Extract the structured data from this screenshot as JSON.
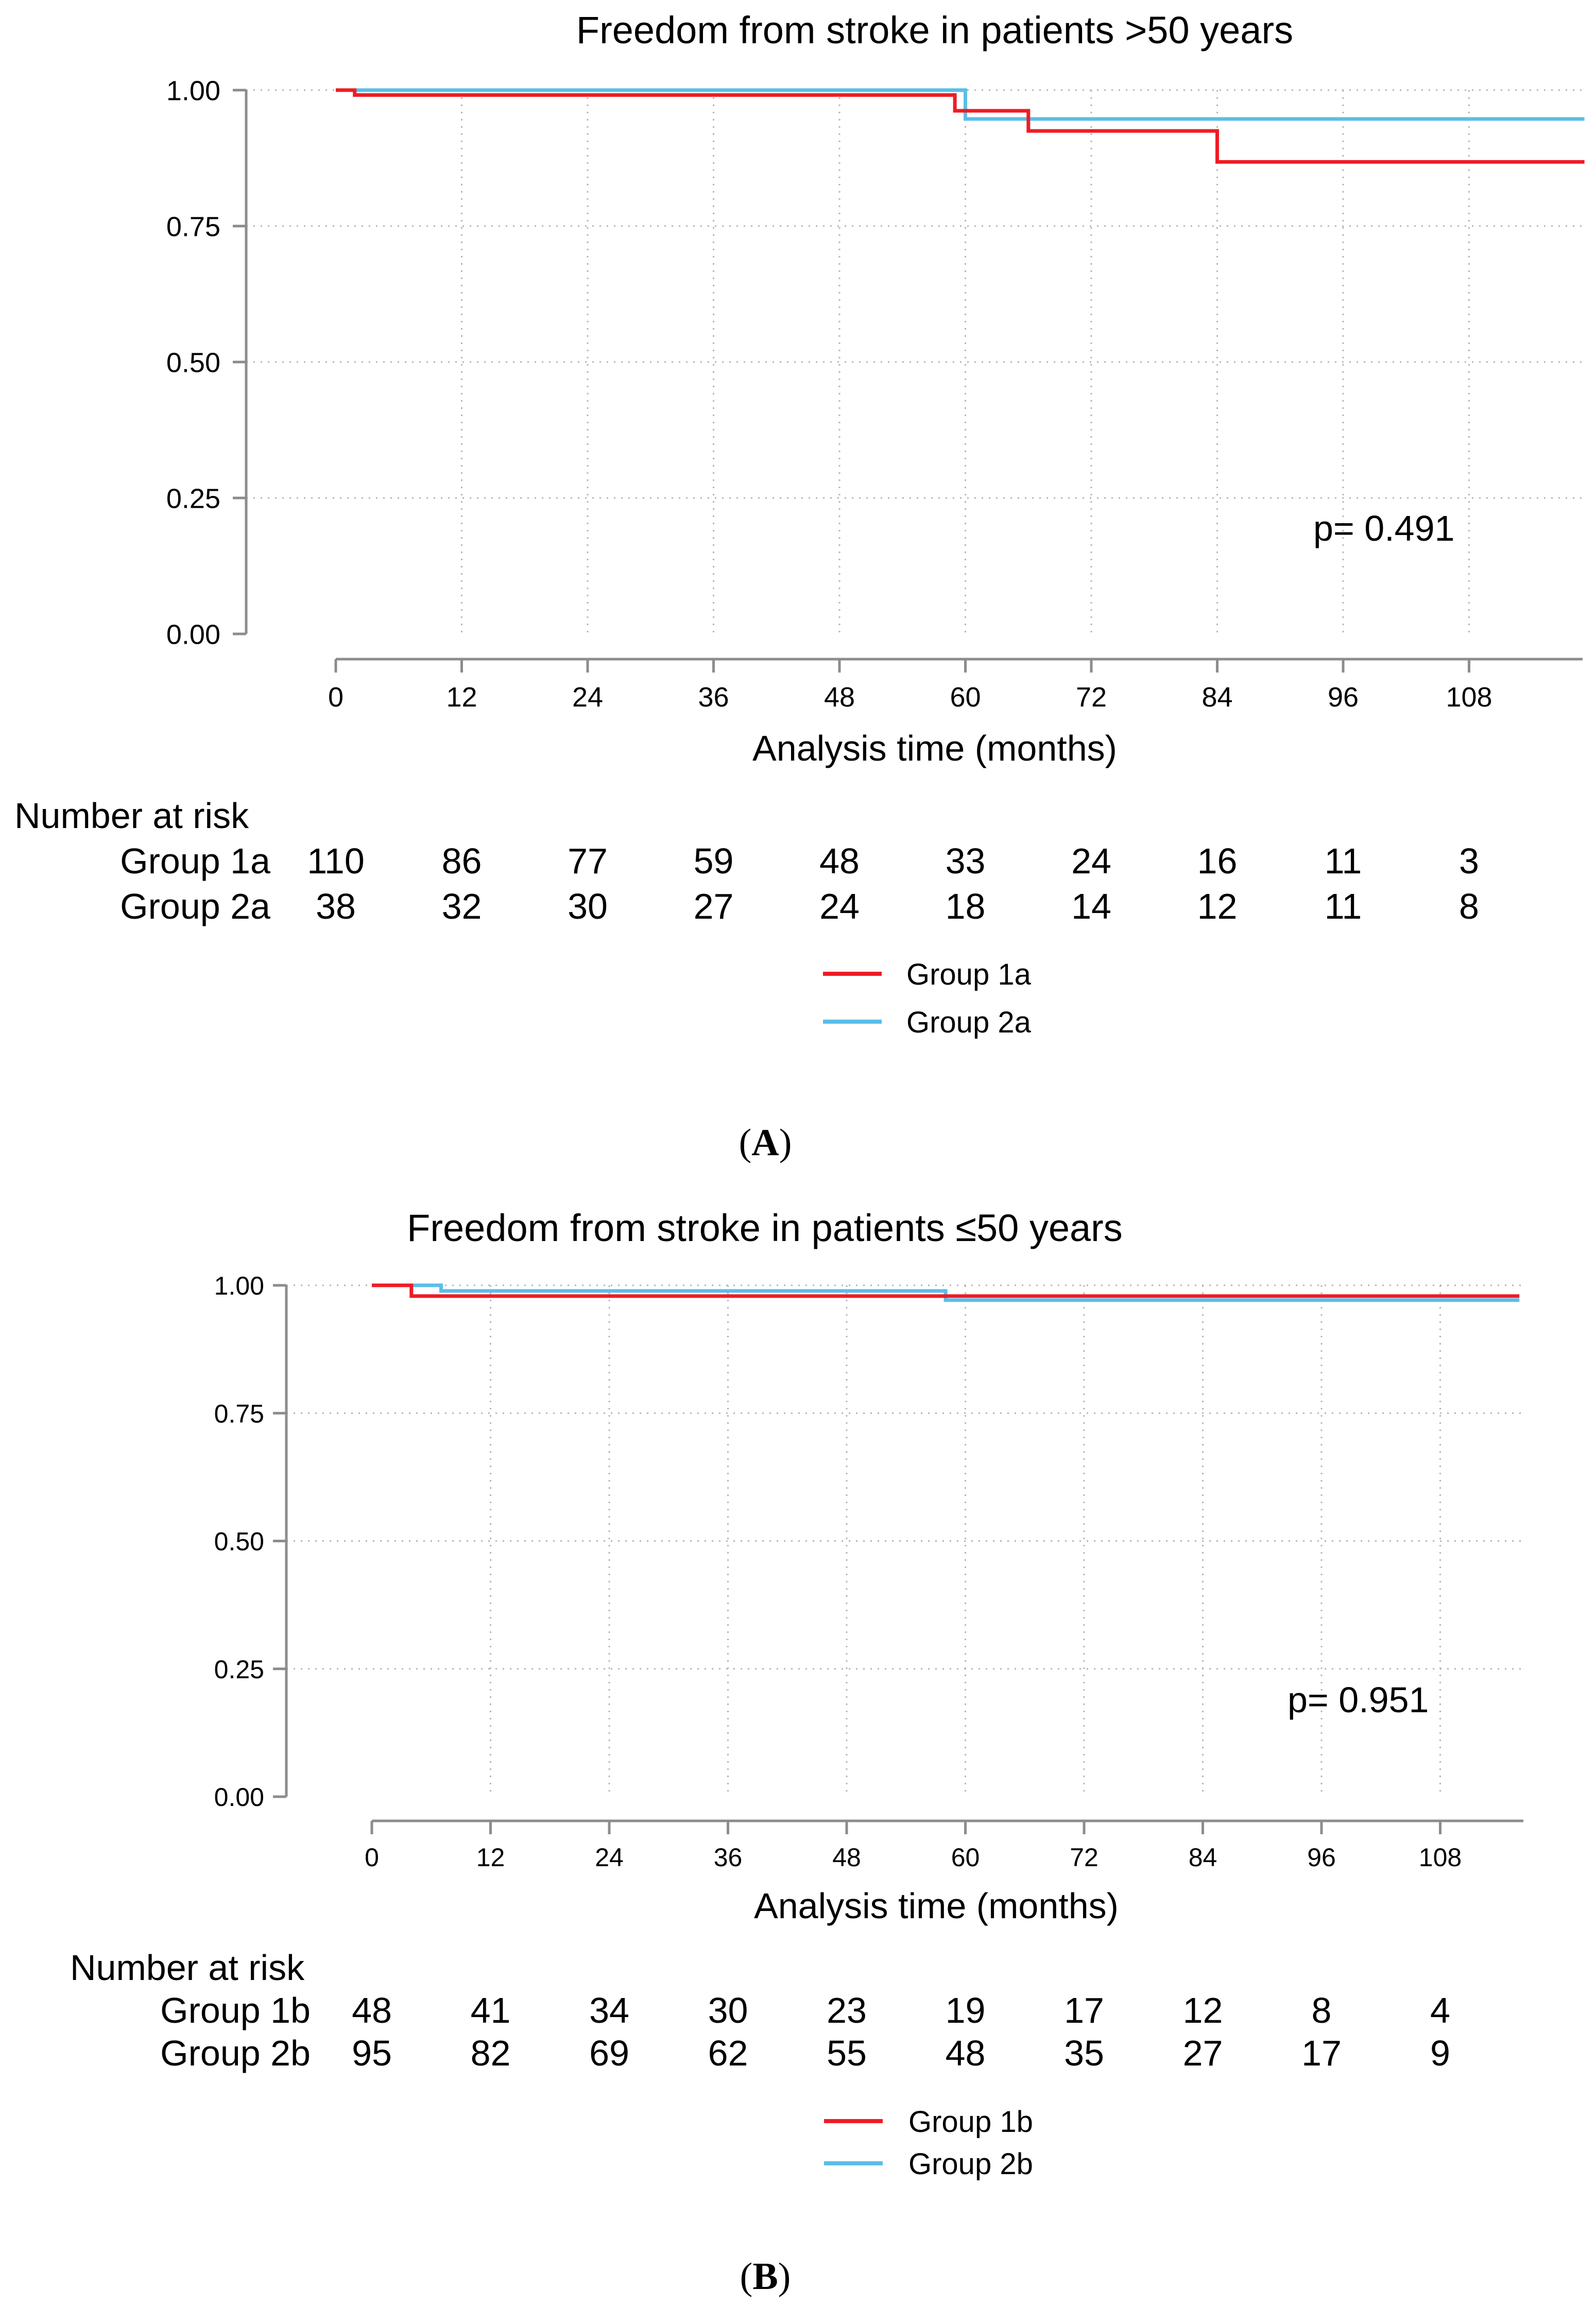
{
  "chart_data": [
    {
      "panel": "(A)",
      "panel_open": "(",
      "panel_letter": "A",
      "panel_close": ")",
      "type": "line",
      "subtype": "kaplan-meier",
      "title": "Freedom from stroke in patients >50 years",
      "xlabel": "Analysis time (months)",
      "ylabel": "",
      "xlim": [
        0,
        119
      ],
      "ylim": [
        0,
        1
      ],
      "x_ticks": [
        0,
        12,
        24,
        36,
        48,
        60,
        72,
        84,
        96,
        108
      ],
      "y_ticks": [
        "0.00",
        "0.25",
        "0.50",
        "0.75",
        "1.00"
      ],
      "grid": true,
      "annotation": "p= 0.491",
      "series": [
        {
          "name": "Group 1a",
          "color": "#ee1c25",
          "steps": [
            [
              0,
              1.0
            ],
            [
              1.8,
              0.991
            ],
            [
              59,
              0.962
            ],
            [
              66,
              0.925
            ],
            [
              84,
              0.868
            ],
            [
              119,
              0.868
            ]
          ]
        },
        {
          "name": "Group 2a",
          "color": "#5bbde8",
          "steps": [
            [
              0,
              1.0
            ],
            [
              60,
              0.947
            ],
            [
              119,
              0.947
            ]
          ]
        }
      ],
      "risk_table": {
        "heading": "Number at risk",
        "rows": [
          {
            "label": "Group 1a",
            "values": [
              "110",
              "86",
              "77",
              "59",
              "48",
              "33",
              "24",
              "16",
              "11",
              "3"
            ]
          },
          {
            "label": "Group 2a",
            "values": [
              "38",
              "32",
              "30",
              "27",
              "24",
              "18",
              "14",
              "12",
              "11",
              "8"
            ]
          }
        ]
      },
      "legend": [
        "Group 1a",
        "Group 2a"
      ]
    },
    {
      "panel": "(B)",
      "panel_open": "(",
      "panel_letter": "B",
      "panel_close": ")",
      "type": "line",
      "subtype": "kaplan-meier",
      "title": "Freedom from stroke in patients ≤50 years",
      "xlabel": "Analysis time (months)",
      "ylabel": "",
      "xlim": [
        0,
        116
      ],
      "ylim": [
        0,
        1
      ],
      "x_ticks": [
        0,
        12,
        24,
        36,
        48,
        60,
        72,
        84,
        96,
        108
      ],
      "y_ticks": [
        "0.00",
        "0.25",
        "0.50",
        "0.75",
        "1.00"
      ],
      "grid": true,
      "annotation": "p= 0.951",
      "series": [
        {
          "name": "Group 1b",
          "color": "#ee1c25",
          "steps": [
            [
              0,
              1.0
            ],
            [
              4,
              0.979
            ],
            [
              116,
              0.979
            ]
          ]
        },
        {
          "name": "Group 2b",
          "color": "#5bbde8",
          "steps": [
            [
              0,
              1.0
            ],
            [
              7,
              0.989
            ],
            [
              58,
              0.971
            ],
            [
              116,
              0.971
            ]
          ]
        }
      ],
      "risk_table": {
        "heading": "Number at risk",
        "rows": [
          {
            "label": "Group 1b",
            "values": [
              "48",
              "41",
              "34",
              "30",
              "23",
              "19",
              "17",
              "12",
              "8",
              "4"
            ]
          },
          {
            "label": "Group 2b",
            "values": [
              "95",
              "82",
              "69",
              "62",
              "55",
              "48",
              "35",
              "27",
              "17",
              "9"
            ]
          }
        ]
      },
      "legend": [
        "Group 1b",
        "Group 2b"
      ]
    }
  ]
}
